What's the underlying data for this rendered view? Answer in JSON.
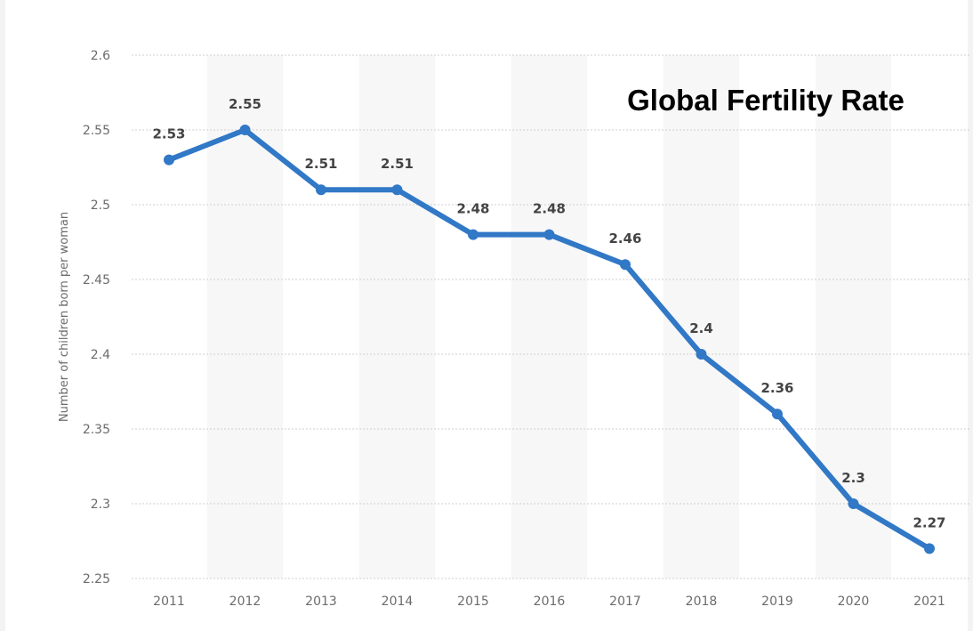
{
  "chart_data": {
    "type": "line",
    "title": "Global Fertility Rate",
    "xlabel": "",
    "ylabel": "Number of children born per woman",
    "categories": [
      "2011",
      "2012",
      "2013",
      "2014",
      "2015",
      "2016",
      "2017",
      "2018",
      "2019",
      "2020",
      "2021"
    ],
    "series": [
      {
        "values": [
          2.53,
          2.55,
          2.51,
          2.51,
          2.48,
          2.48,
          2.46,
          2.4,
          2.36,
          2.3,
          2.27
        ]
      }
    ],
    "data_labels": [
      "2.53",
      "2.55",
      "2.51",
      "2.51",
      "2.48",
      "2.48",
      "2.46",
      "2.4",
      "2.36",
      "2.3",
      "2.27"
    ],
    "ylim": [
      2.25,
      2.6
    ],
    "yticks": [
      "2.25",
      "2.3",
      "2.35",
      "2.4",
      "2.45",
      "2.5",
      "2.55",
      "2.6"
    ],
    "line_color": "#3178c6",
    "band_color": "#f7f7f7",
    "grid": true
  }
}
